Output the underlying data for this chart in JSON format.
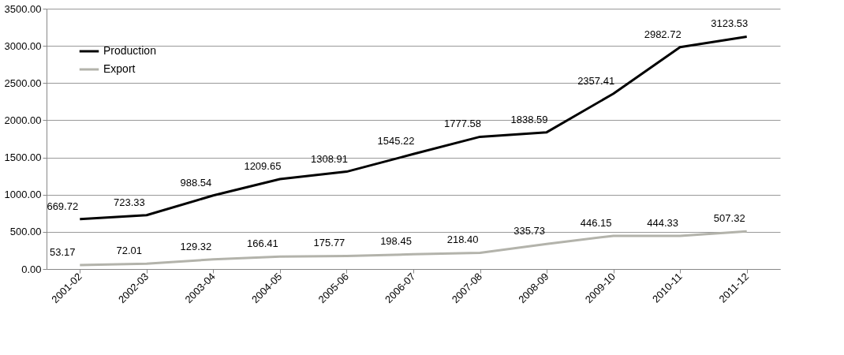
{
  "chart_data": {
    "type": "line",
    "categories": [
      "2001-02",
      "2002-03",
      "2003-04",
      "2004-05",
      "2005-06",
      "2006-07",
      "2007-08",
      "2008-09",
      "2009-10",
      "2010-11",
      "2011-12"
    ],
    "series": [
      {
        "name": "Production",
        "color": "#000000",
        "values": [
          669.72,
          723.33,
          988.54,
          1209.65,
          1308.91,
          1545.22,
          1777.58,
          1838.59,
          2357.41,
          2982.72,
          3123.53
        ]
      },
      {
        "name": "Export",
        "color": "#b3b3ab",
        "values": [
          53.17,
          72.01,
          129.32,
          166.41,
          175.77,
          198.45,
          218.4,
          335.73,
          446.15,
          444.33,
          507.32
        ],
        "value_labels": [
          "53.17",
          "72.01",
          "129.32",
          "166.41",
          "175.77",
          "198.45",
          "218.40",
          "335.73",
          "446.15",
          "444.33",
          "507.32"
        ]
      }
    ],
    "ylim": [
      0,
      3500
    ],
    "yticks": [
      {
        "value": 0,
        "label": "0.00"
      },
      {
        "value": 500,
        "label": "500.00"
      },
      {
        "value": 1000,
        "label": "1000.00"
      },
      {
        "value": 1500,
        "label": "1500.00"
      },
      {
        "value": 2000,
        "label": "2000.00"
      },
      {
        "value": 2500,
        "label": "2500.00"
      },
      {
        "value": 3000,
        "label": "3000.00"
      },
      {
        "value": 3500,
        "label": "3500.00"
      }
    ],
    "grid": "y",
    "legend": "top left",
    "data_labels": true,
    "marker": "none",
    "line_style": "solid"
  }
}
